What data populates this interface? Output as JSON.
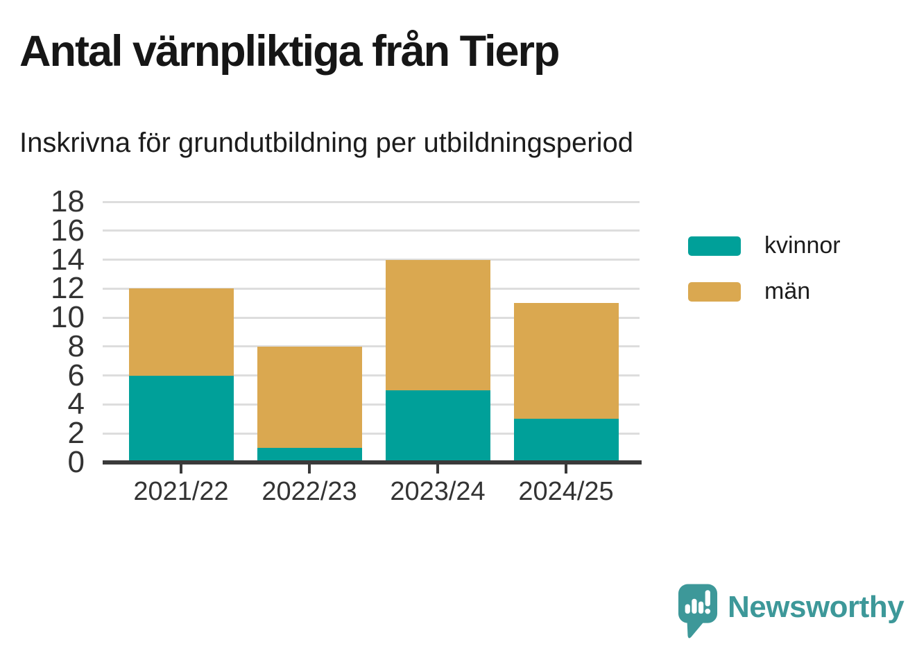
{
  "title": "Antal värnpliktiga från Tierp",
  "subtitle": "Inskrivna för grundutbildning per utbildningsperiod",
  "chart_data": {
    "type": "bar",
    "stacked": true,
    "categories": [
      "2021/22",
      "2022/23",
      "2023/24",
      "2024/25"
    ],
    "series": [
      {
        "name": "kvinnor",
        "color": "#00A099",
        "values": [
          6,
          1,
          5,
          3
        ]
      },
      {
        "name": "män",
        "color": "#DAA850",
        "values": [
          6,
          7,
          9,
          8
        ]
      }
    ],
    "totals": [
      12,
      8,
      14,
      11
    ],
    "ylim": [
      0,
      18
    ],
    "yticks": [
      0,
      2,
      4,
      6,
      8,
      10,
      12,
      14,
      16,
      18
    ],
    "grid": "horizontal",
    "legend_position": "right"
  },
  "legend": {
    "items": [
      {
        "label": "kvinnor",
        "color": "#00A099"
      },
      {
        "label": "män",
        "color": "#DAA850"
      }
    ]
  },
  "branding": {
    "logo_text": "Newsworthy",
    "logo_color": "#3D9899"
  }
}
